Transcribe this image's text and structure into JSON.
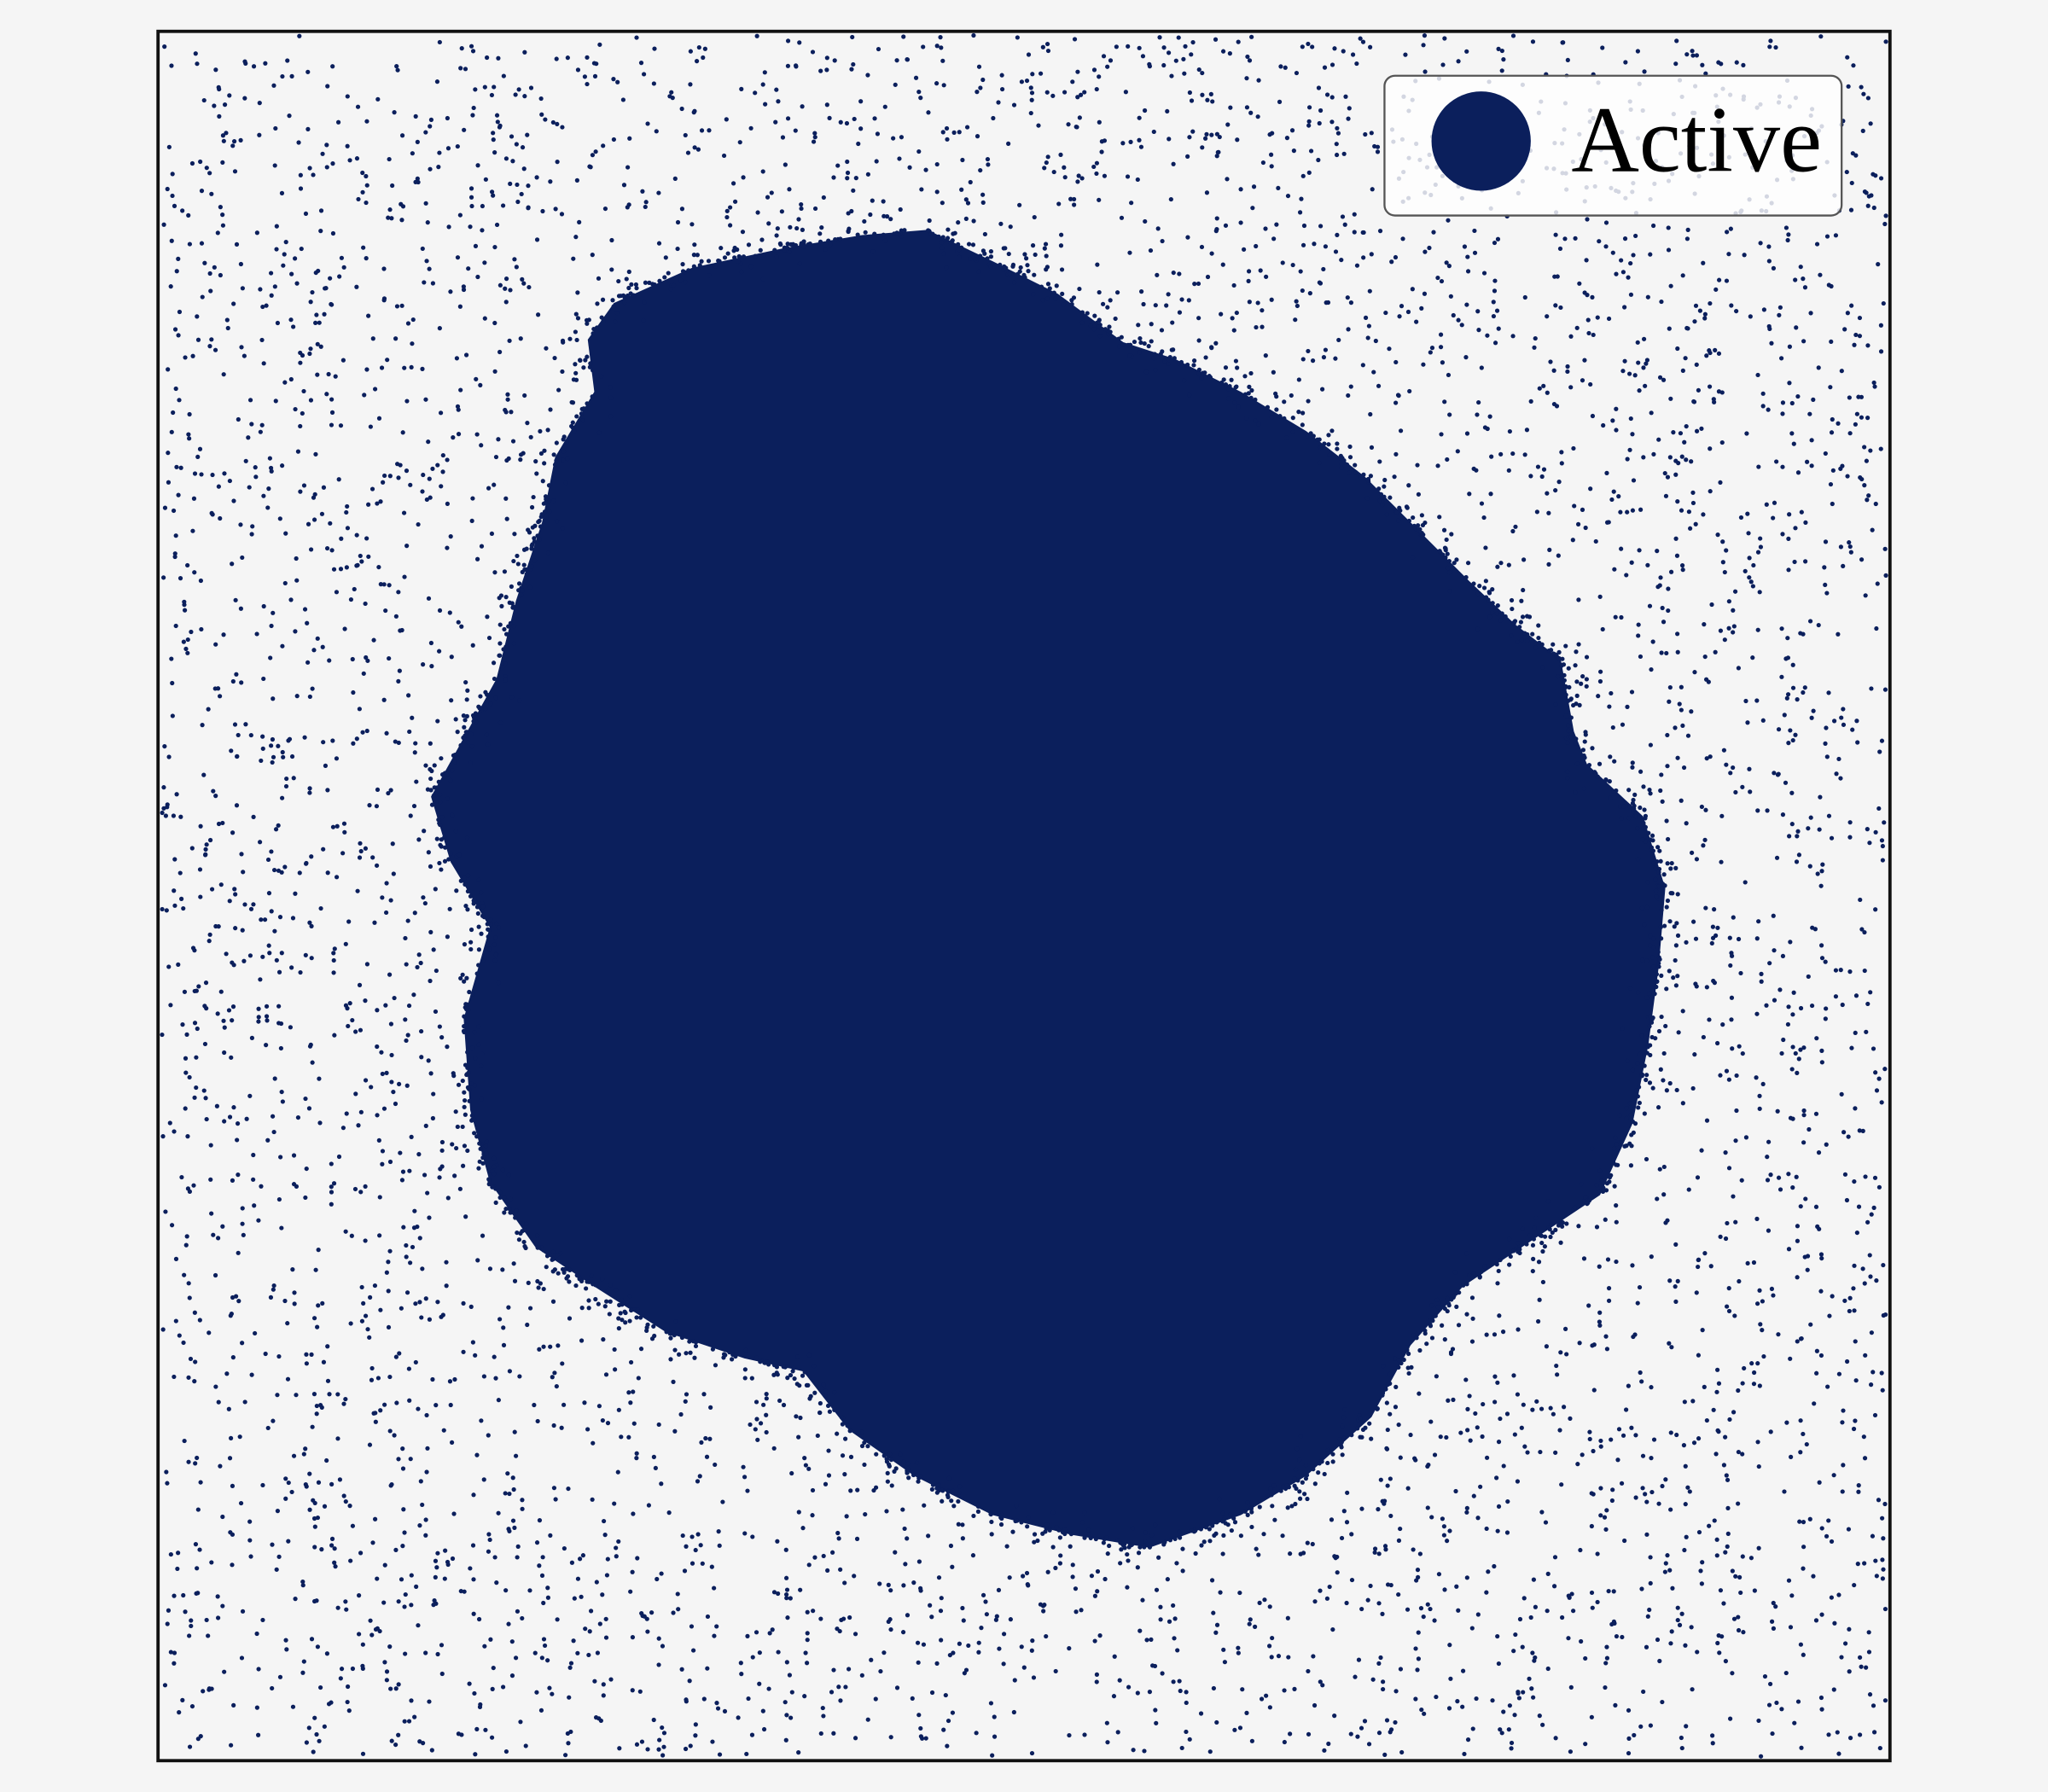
{
  "legend": {
    "label": "Active"
  }
}
